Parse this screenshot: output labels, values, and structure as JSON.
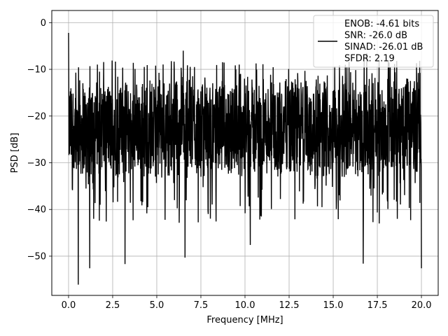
{
  "chart_data": {
    "type": "line",
    "title": "",
    "xlabel": "Frequency [MHz]",
    "ylabel": "PSD [dB]",
    "xlim": [
      -0.95,
      20.95
    ],
    "ylim": [
      -58.4,
      2.6
    ],
    "xticks": [
      0.0,
      2.5,
      5.0,
      7.5,
      10.0,
      12.5,
      15.0,
      17.5,
      20.0
    ],
    "xtick_labels": [
      "0.0",
      "2.5",
      "5.0",
      "7.5",
      "10.0",
      "12.5",
      "15.0",
      "17.5",
      "20.0"
    ],
    "yticks": [
      0,
      -10,
      -20,
      -30,
      -40,
      -50
    ],
    "ytick_labels": [
      "0",
      "−10",
      "−20",
      "−30",
      "−40",
      "−50"
    ],
    "grid": true,
    "legend_position": "top-right",
    "series": [
      {
        "name": "ENOB: -4.61 bits\nSNR: -26.0 dB\nSINAD: -26.01 dB\nSFDR: 2.19",
        "color": "#000000",
        "x_range": [
          0.0,
          20.0
        ],
        "envelope": {
          "typical_max_db": -12,
          "typical_min_db": -33,
          "peak_max_db": -2.2,
          "peak_min_db": -56.1
        },
        "notable_points": [
          {
            "x": 0.0,
            "y": -2.2
          },
          {
            "x": 0.55,
            "y": -56.1
          },
          {
            "x": 1.2,
            "y": -52.6
          },
          {
            "x": 3.2,
            "y": -51.7
          },
          {
            "x": 6.6,
            "y": -50.3
          },
          {
            "x": 10.3,
            "y": -47.6
          },
          {
            "x": 16.7,
            "y": -51.6
          },
          {
            "x": 20.0,
            "y": -52.6
          },
          {
            "x": 6.5,
            "y": -6.0
          },
          {
            "x": 16.9,
            "y": -6.5
          }
        ]
      }
    ]
  },
  "legend": {
    "lines": [
      "ENOB: -4.61 bits",
      "SNR: -26.0 dB",
      "SINAD: -26.01 dB",
      "SFDR: 2.19"
    ]
  }
}
